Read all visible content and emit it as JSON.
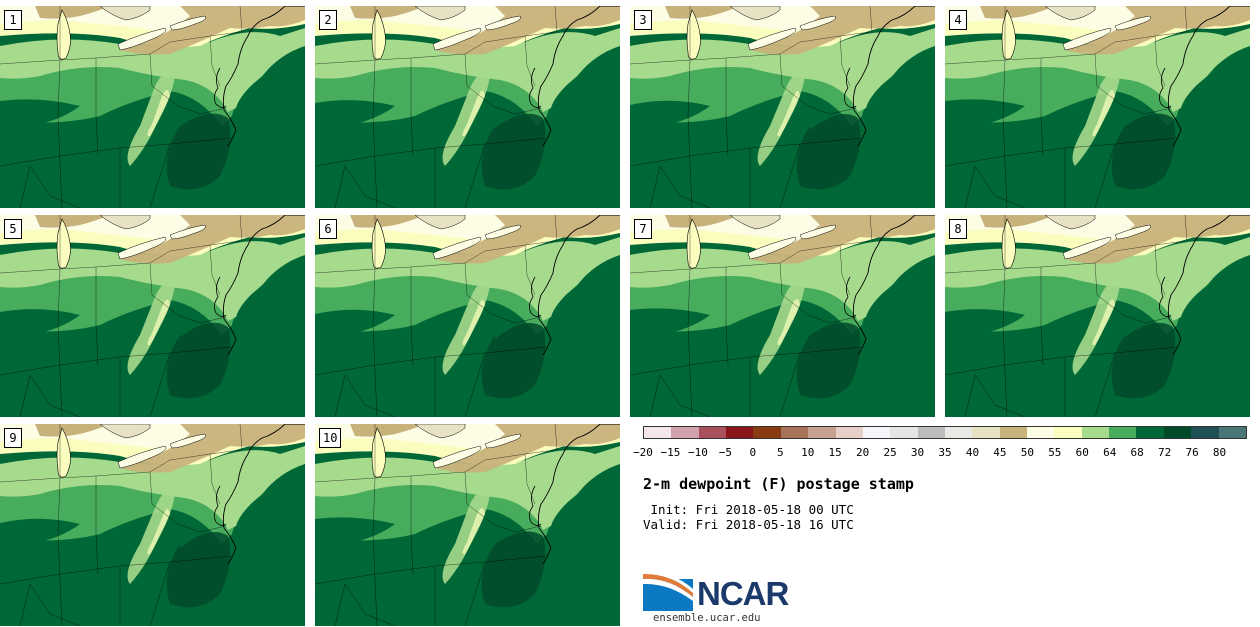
{
  "panels": [
    {
      "label": "1"
    },
    {
      "label": "2"
    },
    {
      "label": "3"
    },
    {
      "label": "4"
    },
    {
      "label": "5"
    },
    {
      "label": "6"
    },
    {
      "label": "7"
    },
    {
      "label": "8"
    },
    {
      "label": "9"
    },
    {
      "label": "10"
    }
  ],
  "colorbar": {
    "colors": [
      "#f4e6ea",
      "#d1a2ad",
      "#a9505d",
      "#891519",
      "#8a3b12",
      "#a9735a",
      "#c8a090",
      "#e6cfc6",
      "#f5f4f8",
      "#e5e5e8",
      "#bdbdbf",
      "#e9e9e5",
      "#e7e2c4",
      "#c8b27b",
      "#fdfde6",
      "#fbfdbe",
      "#a6da8d",
      "#47ac5c",
      "#006837",
      "#004a2a",
      "#1e5054",
      "#497677"
    ],
    "ticks": [
      "−20",
      "−15",
      "−10",
      "−5",
      "0",
      "5",
      "10",
      "15",
      "20",
      "25",
      "30",
      "35",
      "40",
      "45",
      "50",
      "55",
      "60",
      "64",
      "68",
      "72",
      "76",
      "80"
    ]
  },
  "title": "2-m dewpoint (F) postage stamp",
  "init": " Init: Fri 2018-05-18 00 UTC",
  "valid": "Valid: Fri 2018-05-18 16 UTC",
  "logo": {
    "text": "NCAR",
    "url": "ensemble.ucar.edu"
  }
}
